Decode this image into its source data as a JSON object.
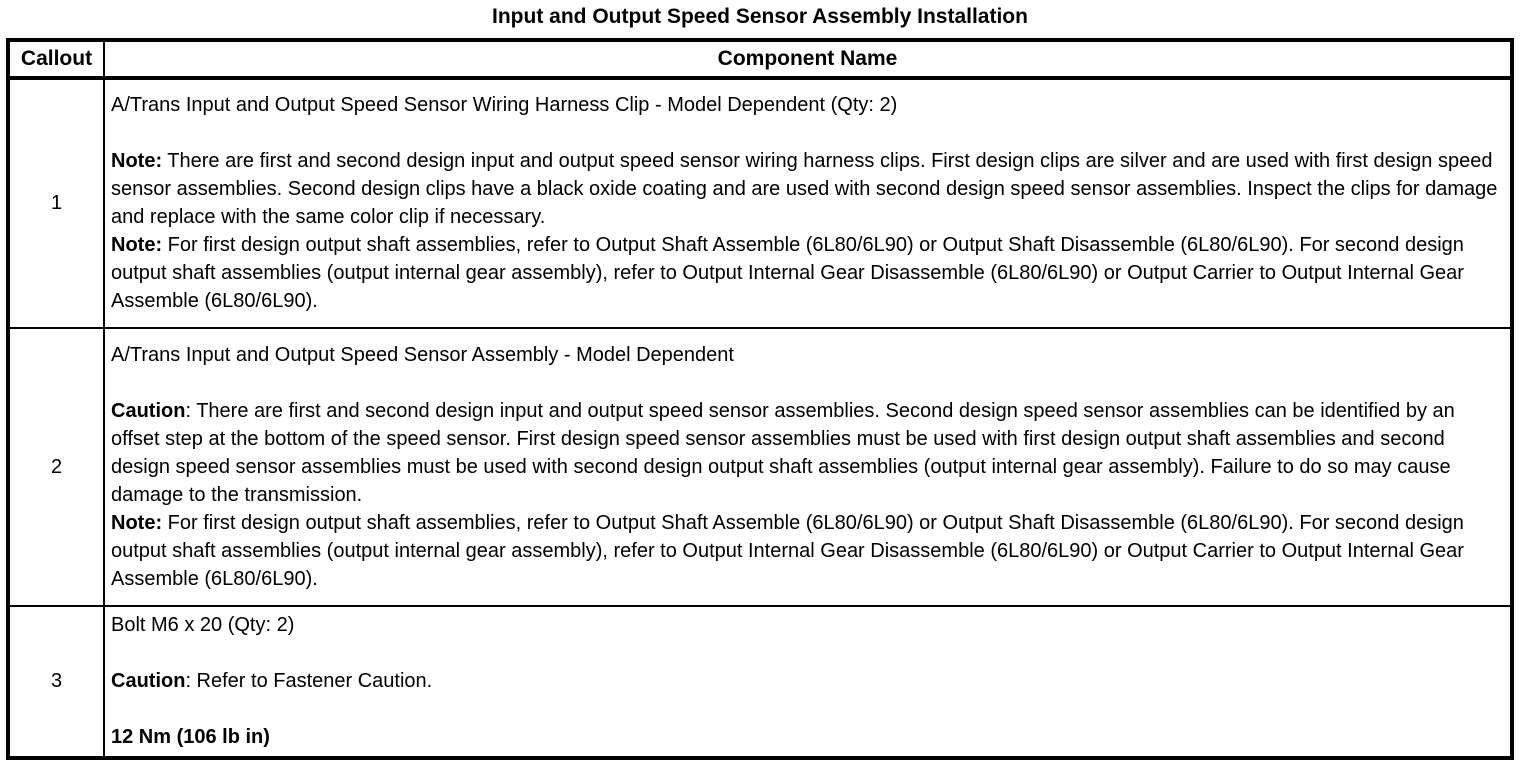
{
  "title": "Input and Output Speed Sensor Assembly Installation",
  "table": {
    "headers": {
      "callout": "Callout",
      "component": "Component Name"
    },
    "rows": [
      {
        "callout": "1",
        "paragraphs": [
          {
            "bold": "",
            "text": "A/Trans Input and Output Speed Sensor Wiring Harness Clip - Model Dependent (Qty: 2)"
          },
          {
            "bold": "Note:",
            "text": " There are first and second design input and output speed sensor wiring harness clips. First design clips are silver and are used with first design speed sensor assemblies. Second design clips have a black oxide coating and are used with second design speed sensor assemblies. Inspect the clips for damage and replace with the same color clip if necessary."
          },
          {
            "bold": "Note:",
            "text": " For first design output shaft assemblies, refer to Output Shaft Assemble (6L80/6L90) or Output Shaft Disassemble (6L80/6L90). For second design output shaft assemblies (output internal gear assembly), refer to Output Internal Gear Disassemble (6L80/6L90) or Output Carrier to Output Internal Gear Assemble (6L80/6L90)."
          }
        ]
      },
      {
        "callout": "2",
        "paragraphs": [
          {
            "bold": "",
            "text": "A/Trans Input and Output Speed Sensor Assembly - Model Dependent"
          },
          {
            "bold": "Caution",
            "text": ": There are first and second design input and output speed sensor assemblies. Second design speed sensor assemblies can be identified by an offset step at the bottom of the speed sensor. First design speed sensor assemblies must be used with first design output shaft assemblies and second design speed sensor assemblies must be used with second design output shaft assemblies (output internal gear assembly). Failure to do so may cause damage to the transmission."
          },
          {
            "bold": "Note:",
            "text": " For first design output shaft assemblies, refer to Output Shaft Assemble (6L80/6L90) or Output Shaft Disassemble (6L80/6L90). For second design output shaft assemblies (output internal gear assembly), refer to Output Internal Gear Disassemble (6L80/6L90) or Output Carrier to Output Internal Gear Assemble (6L80/6L90)."
          }
        ]
      },
      {
        "callout": "3",
        "paragraphs": [
          {
            "bold": "",
            "text": "Bolt M6 x 20 (Qty: 2)"
          },
          {
            "bold": "Caution",
            "text": ": Refer to Fastener Caution."
          },
          {
            "bold": "12 Nm (106 lb in)",
            "text": ""
          }
        ]
      }
    ]
  }
}
